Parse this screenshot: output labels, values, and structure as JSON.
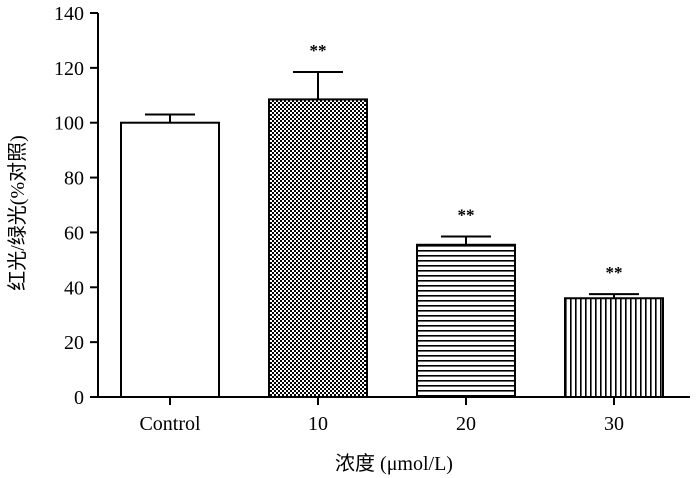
{
  "chart_data": {
    "type": "bar",
    "title": "",
    "xlabel": "浓度 (μmol/L)",
    "ylabel": "红光/绿光(%对照)",
    "ylim": [
      0,
      140
    ],
    "yticks": [
      0,
      20,
      40,
      60,
      80,
      100,
      120,
      140
    ],
    "categories": [
      "Control",
      "10",
      "20",
      "30"
    ],
    "values": [
      100,
      108.5,
      55.5,
      36
    ],
    "errors": [
      3,
      10,
      3,
      1.5
    ],
    "significance": [
      "",
      "**",
      "**",
      "**"
    ],
    "patterns": [
      "solid-white",
      "checkerboard",
      "horizontal-lines",
      "vertical-lines"
    ]
  }
}
